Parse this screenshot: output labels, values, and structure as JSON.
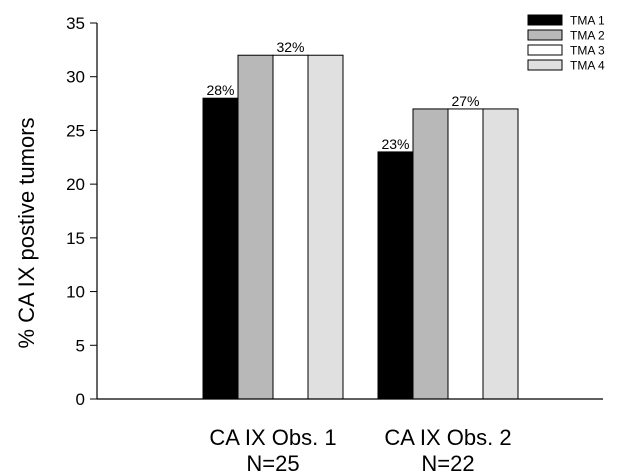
{
  "chart_data": {
    "type": "bar",
    "ylabel": "% CA IX postive tumors",
    "ylim": [
      0,
      35
    ],
    "yticks": [
      0,
      5,
      10,
      15,
      20,
      25,
      30,
      35
    ],
    "categories": [
      {
        "line1": "CA IX Obs. 1",
        "line2": "N=25"
      },
      {
        "line1": "CA IX Obs. 2",
        "line2": "N=22"
      }
    ],
    "series": [
      {
        "name": "TMA 1",
        "color": "#000000",
        "values": [
          28,
          23
        ]
      },
      {
        "name": "TMA 2",
        "color": "#b8b8b8",
        "values": [
          32,
          27
        ]
      },
      {
        "name": "TMA 3",
        "color": "#ffffff",
        "values": [
          32,
          27
        ]
      },
      {
        "name": "TMA 4",
        "color": "#e0e0e0",
        "values": [
          32,
          27
        ]
      }
    ],
    "data_labels": [
      {
        "category": 0,
        "series": 0,
        "text": "28%"
      },
      {
        "category": 0,
        "series": 2,
        "text": "32%"
      },
      {
        "category": 1,
        "series": 0,
        "text": "23%"
      },
      {
        "category": 1,
        "series": 2,
        "text": "27%"
      }
    ],
    "legend": "top-right",
    "grid": false
  }
}
